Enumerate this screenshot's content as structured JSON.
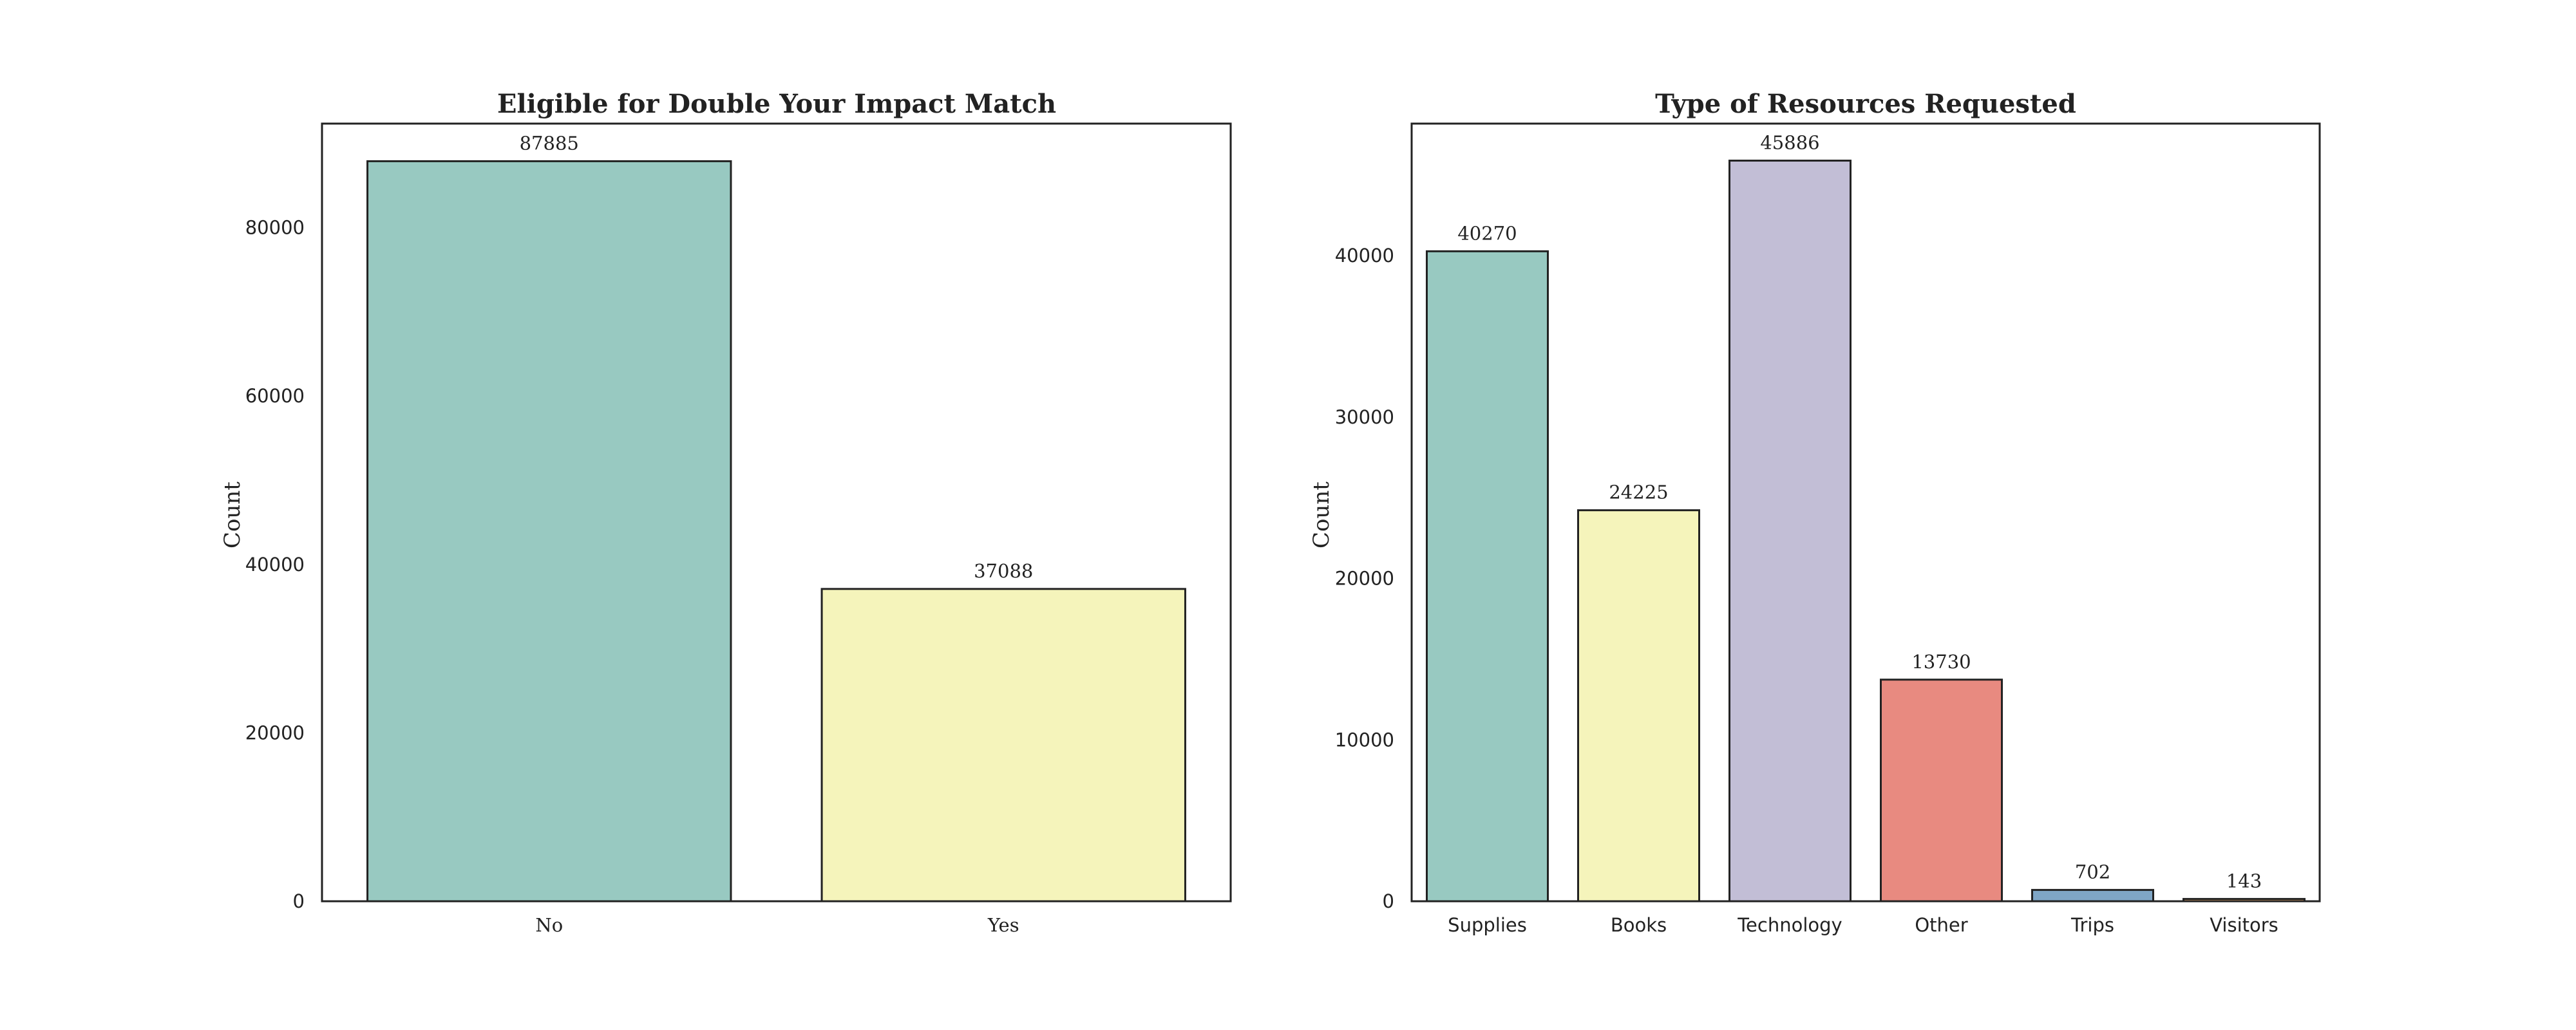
{
  "chart_data": [
    {
      "type": "bar",
      "title": "Eligible for Double Your Impact Match",
      "xlabel": "",
      "ylabel": "Count",
      "categories": [
        "No",
        "Yes"
      ],
      "values": [
        87885,
        37088
      ],
      "value_labels": [
        "87885",
        "37088"
      ],
      "colors": [
        "#98c9c1",
        "#f5f4bb"
      ],
      "ylim": [
        0,
        92350
      ],
      "yticks": [
        0,
        20000,
        40000,
        60000,
        80000
      ],
      "ytick_labels": [
        "0",
        "20000",
        "40000",
        "60000",
        "80000"
      ],
      "grid": false,
      "legend": "none"
    },
    {
      "type": "bar",
      "title": "Type of Resources Requested",
      "xlabel": "",
      "ylabel": "Count",
      "categories": [
        "Supplies",
        "Books",
        "Technology",
        "Other",
        "Trips",
        "Visitors"
      ],
      "values": [
        40270,
        24225,
        45886,
        13730,
        702,
        143
      ],
      "value_labels": [
        "40270",
        "24225",
        "45886",
        "13730",
        "702",
        "143"
      ],
      "colors": [
        "#98c9c1",
        "#f5f4bb",
        "#c2bed6",
        "#e88a80",
        "#7fa6c6",
        "#f3b071"
      ],
      "ylim": [
        0,
        48180
      ],
      "yticks": [
        0,
        10000,
        20000,
        30000,
        40000
      ],
      "ytick_labels": [
        "0",
        "10000",
        "20000",
        "30000",
        "40000"
      ],
      "grid": false,
      "legend": "none"
    }
  ]
}
